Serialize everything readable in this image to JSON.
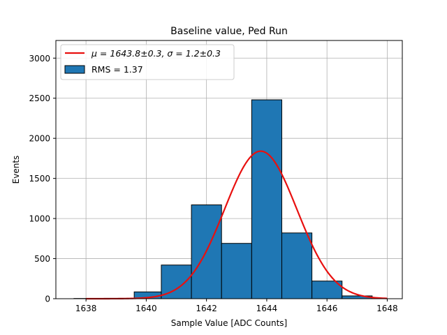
{
  "chart_data": {
    "type": "bar",
    "title": "Baseline value, Ped Run",
    "xlabel": "Sample Value [ADC Counts]",
    "ylabel": "Events",
    "xlim": [
      1637.0,
      1648.5
    ],
    "ylim": [
      0,
      3220
    ],
    "xticks": [
      1638,
      1640,
      1642,
      1644,
      1646,
      1648
    ],
    "yticks": [
      0,
      500,
      1000,
      1500,
      2000,
      2500,
      3000
    ],
    "grid": true,
    "legend_position": "top-left",
    "colors": {
      "bars": "#1f77b4",
      "bar_edge": "#000000",
      "fit": "#e8100f",
      "grid": "#b0b0b0"
    },
    "histogram": {
      "name": "RMS = 1.37",
      "bin_edges": [
        1637.6,
        1638.6,
        1639.6,
        1640.5,
        1641.5,
        1642.5,
        1643.5,
        1644.5,
        1645.5,
        1646.5,
        1647.5
      ],
      "counts": [
        3,
        5,
        85,
        420,
        1170,
        690,
        2480,
        820,
        220,
        35
      ]
    },
    "fit": {
      "name": "$\\mu = 1643.8 \\pm 0.3$, $\\sigma = 1.2 \\pm 0.3$",
      "legend_label": "μ = 1643.8±0.3, σ = 1.2±0.3",
      "amplitude": 1840,
      "mu": 1643.8,
      "sigma": 1.2,
      "x_range": [
        1638,
        1648
      ]
    }
  }
}
